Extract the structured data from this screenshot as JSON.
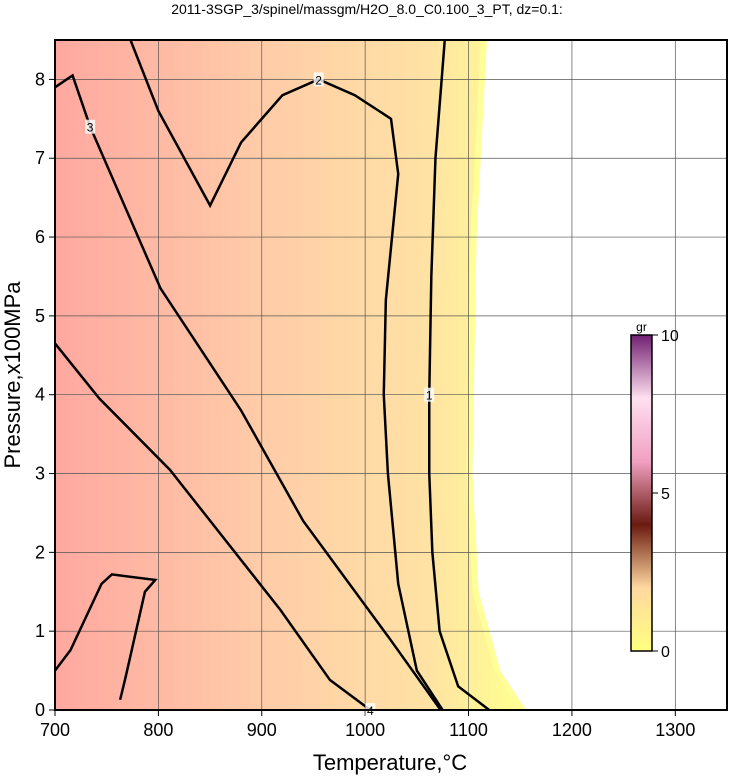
{
  "chart_data": {
    "type": "contour",
    "title": "2011-3SGP_3/spinel/massgm/H2O_8.0_C0.100_3_PT, dz=0.1:",
    "x_label": "Temperature,°C",
    "y_label": "Pressure,x100MPa",
    "xlim": [
      700,
      1350
    ],
    "ylim": [
      0,
      8.5
    ],
    "xticks": [
      700,
      800,
      900,
      1000,
      1100,
      1200,
      1300
    ],
    "yticks": [
      0,
      1,
      2,
      3,
      4,
      5,
      6,
      7,
      8
    ],
    "grid": true,
    "contours": [
      {
        "level": 1,
        "x": [
          1077,
          1068,
          1064,
          1062,
          1062,
          1065,
          1072,
          1090,
          1120
        ],
        "y": [
          8.5,
          7,
          5.5,
          4,
          3,
          2,
          1,
          0.3,
          0
        ]
      },
      {
        "level": 2,
        "x": [
          773,
          800,
          850,
          880,
          920,
          955,
          990,
          1025,
          1032,
          1020,
          1018,
          1022,
          1032,
          1050,
          1075
        ],
        "y": [
          8.5,
          7.6,
          6.4,
          7.2,
          7.8,
          8.0,
          7.8,
          7.5,
          6.8,
          5.2,
          4,
          3,
          1.6,
          0.5,
          0
        ]
      },
      {
        "level": 3,
        "x": [
          700,
          717,
          734,
          802,
          880,
          940,
          1024,
          1073
        ],
        "y": [
          7.9,
          8.05,
          7.4,
          5.35,
          3.8,
          2.4,
          0.9,
          0
        ]
      },
      {
        "level": 4,
        "x": [
          700,
          743,
          811,
          918,
          966,
          1005,
          null,
          763,
          768,
          787,
          797,
          755,
          745,
          715,
          700
        ],
        "y": [
          4.65,
          3.95,
          3.05,
          1.27,
          0.38,
          0,
          null,
          0.13,
          0.4,
          1.5,
          1.65,
          1.72,
          1.6,
          0.76,
          0.5
        ]
      }
    ],
    "colorbar": {
      "label": "gr",
      "lim": [
        0,
        10
      ],
      "ticks": [
        0,
        5,
        10
      ],
      "colors": [
        "#ffff80",
        "#ffd8a0",
        "#6a1a10",
        "#f0a0c0",
        "#ffe0f0",
        "#702070"
      ]
    }
  }
}
